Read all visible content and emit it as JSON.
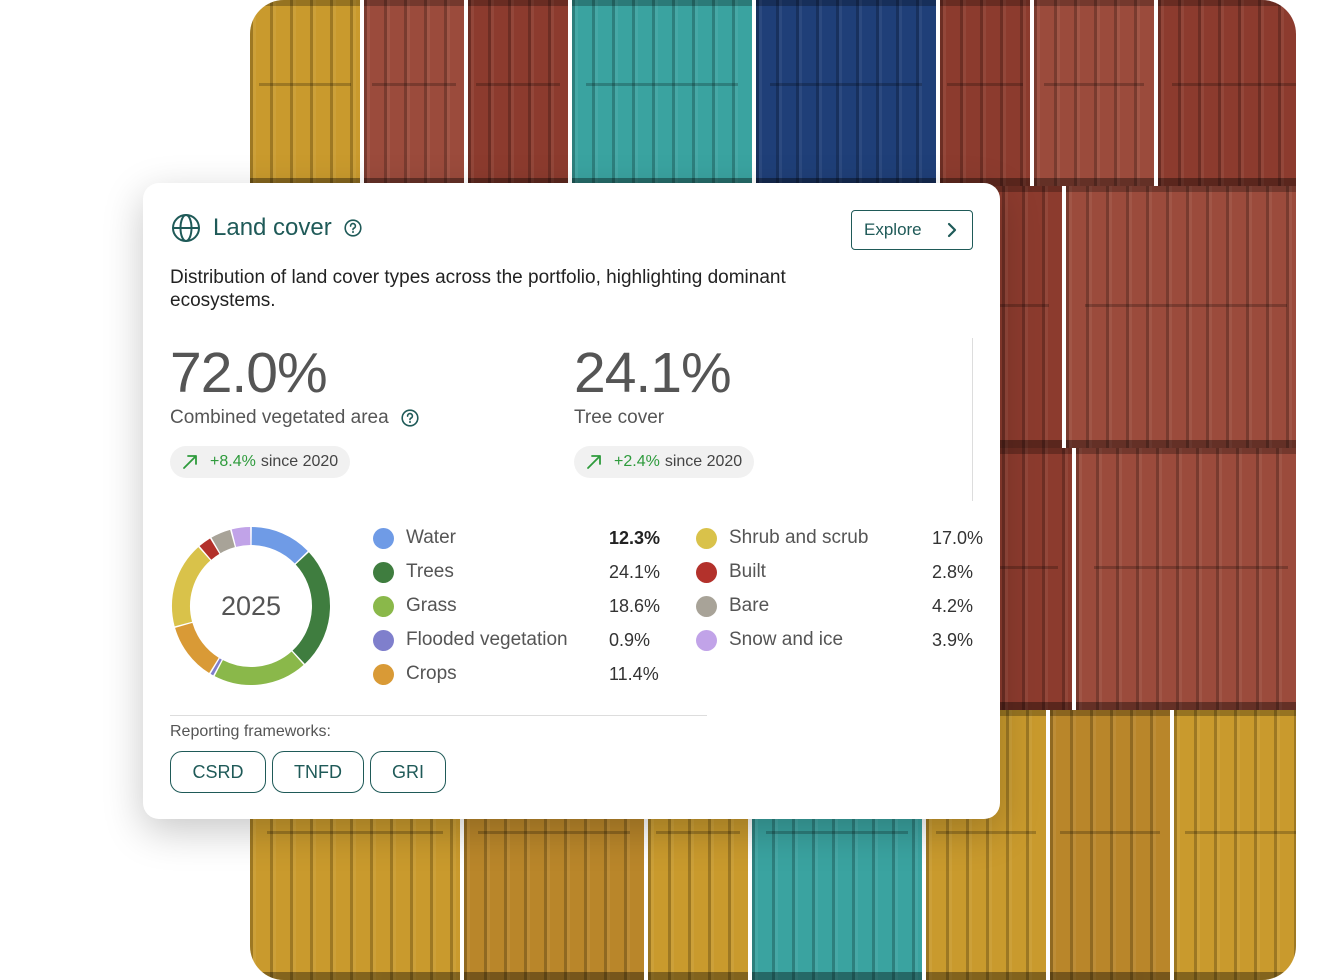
{
  "card": {
    "title": "Land cover",
    "explore_label": "Explore",
    "description": "Distribution of land cover types across the portfolio, highlighting dominant ecosystems.",
    "metrics": [
      {
        "value": "72.0%",
        "label": "Combined vegetated area",
        "delta": "+8.4%",
        "since": "since 2020"
      },
      {
        "value": "24.1%",
        "label": "Tree cover",
        "delta": "+2.4%",
        "since": "since 2020"
      }
    ],
    "year": "2025",
    "reporting_label": "Reporting frameworks:",
    "frameworks": [
      "CSRD",
      "TNFD",
      "GRI"
    ]
  },
  "legend": [
    {
      "name": "Water",
      "value": "12.3%",
      "color": "#6f9be6"
    },
    {
      "name": "Trees",
      "value": "24.1%",
      "color": "#3f7d3f"
    },
    {
      "name": "Grass",
      "value": "18.6%",
      "color": "#8ab84a"
    },
    {
      "name": "Flooded vegetation",
      "value": "0.9%",
      "color": "#7f7fcc"
    },
    {
      "name": "Crops",
      "value": "11.4%",
      "color": "#d99a36"
    },
    {
      "name": "Shrub and scrub",
      "value": "17.0%",
      "color": "#d9c24a"
    },
    {
      "name": "Built",
      "value": "2.8%",
      "color": "#b3312b"
    },
    {
      "name": "Bare",
      "value": "4.2%",
      "color": "#a8a398"
    },
    {
      "name": "Snow and ice",
      "value": "3.9%",
      "color": "#c1a3e8"
    }
  ],
  "chart_data": {
    "type": "pie",
    "categories": [
      "Water",
      "Trees",
      "Grass",
      "Flooded vegetation",
      "Crops",
      "Shrub and scrub",
      "Built",
      "Bare",
      "Snow and ice"
    ],
    "values": [
      12.3,
      24.1,
      18.6,
      0.9,
      11.4,
      17.0,
      2.8,
      4.2,
      3.9
    ],
    "title": "2025"
  },
  "colors": {
    "accent": "#1f5a58",
    "positive": "#2e9b3c"
  }
}
